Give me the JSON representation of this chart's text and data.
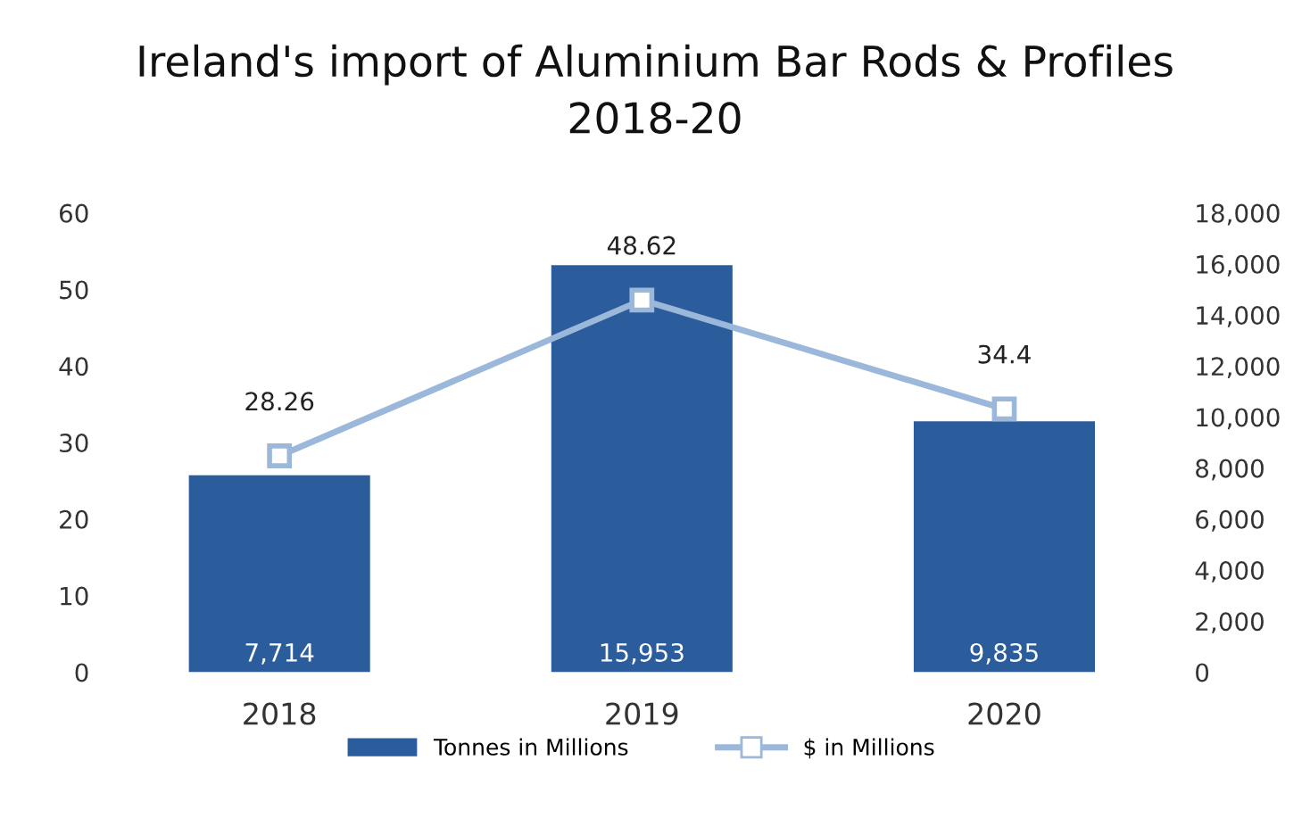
{
  "chart_data": {
    "type": "bar",
    "title": "Ireland's import of Aluminium Bar Rods & Profiles\n2018-20",
    "categories": [
      "2018",
      "2019",
      "2020"
    ],
    "series": [
      {
        "name": "Tonnes in Millions",
        "axis": "y2",
        "color": "#2b5c9c",
        "values": [
          7714,
          15953,
          9835
        ],
        "value_labels": [
          "7,714",
          "15,953",
          "9,835"
        ]
      },
      {
        "name": "$ in Millions",
        "type": "line",
        "color": "#9bb7d9",
        "marker": "square",
        "values": [
          28.26,
          48.62,
          34.4
        ],
        "value_labels": [
          "28.26",
          "48.62",
          "34.4"
        ]
      }
    ],
    "ylim": [
      0,
      60
    ],
    "yticks": [
      0,
      10,
      20,
      30,
      40,
      50,
      60
    ],
    "y2lim": [
      0,
      18000
    ],
    "y2ticks": [
      0,
      {
        "value": 2000,
        "label": "2,000"
      },
      {
        "value": 4000,
        "label": "4,000"
      },
      {
        "value": 6000,
        "label": "6,000"
      },
      {
        "value": 8000,
        "label": "8,000"
      },
      {
        "value": 10000,
        "label": "10,000"
      },
      {
        "value": 12000,
        "label": "12,000"
      },
      {
        "value": 14000,
        "label": "14,000"
      },
      {
        "value": 16000,
        "label": "16,000"
      },
      {
        "value": 18000,
        "label": "18,000"
      }
    ],
    "legend": "bottom",
    "grid": false
  }
}
